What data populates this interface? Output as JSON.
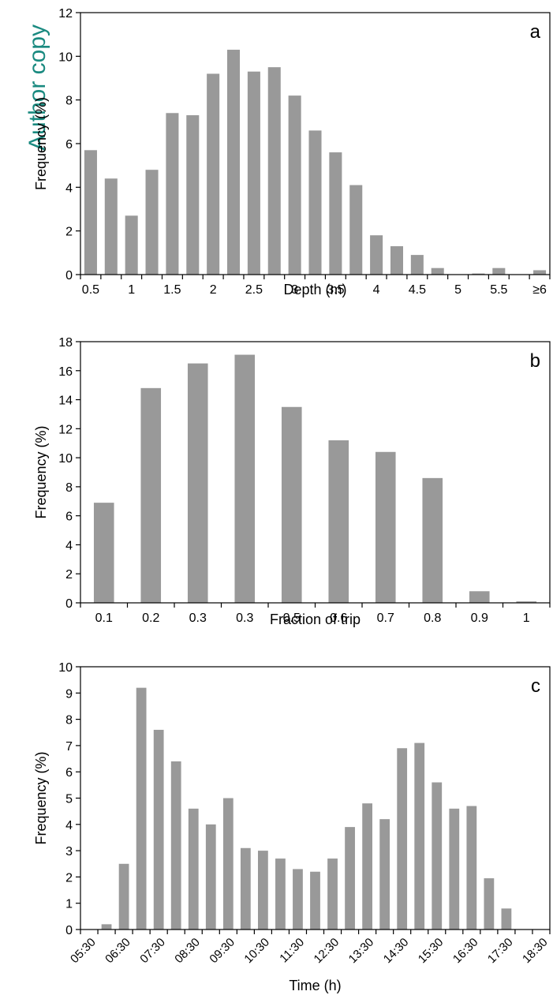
{
  "watermark": "Author copy",
  "colors": {
    "bar": "#999999",
    "axis": "#000000"
  },
  "chart_data": [
    {
      "type": "bar",
      "panel_label": "a",
      "xlabel": "Depth (m)",
      "ylabel": "Frequency (%)",
      "ylim": [
        0,
        12
      ],
      "yticks": [
        0,
        2,
        4,
        6,
        8,
        10,
        12
      ],
      "categories": [
        "0.5",
        "0.75",
        "1",
        "1.25",
        "1.5",
        "1.75",
        "2",
        "2.25",
        "2.5",
        "2.75",
        "3",
        "3.25",
        "3.5",
        "3.75",
        "4",
        "4.25",
        "4.5",
        "4.75",
        "5",
        "5.25",
        "5.5",
        "5.75",
        "≥6"
      ],
      "values": [
        5.7,
        4.4,
        2.7,
        4.8,
        7.4,
        7.3,
        9.2,
        10.3,
        9.3,
        9.5,
        8.2,
        6.6,
        5.6,
        4.1,
        1.8,
        1.3,
        0.9,
        0.3,
        0.0,
        0.05,
        0.3,
        0.0,
        0.2
      ],
      "tick_labels": [
        "0.5",
        "",
        "1",
        "",
        "1.5",
        "",
        "2",
        "",
        "2.5",
        "",
        "3",
        "",
        "3.5",
        "",
        "4",
        "",
        "4.5",
        "",
        "5",
        "",
        "5.5",
        "",
        "≥6"
      ],
      "grid": false
    },
    {
      "type": "bar",
      "panel_label": "b",
      "xlabel": "Fraction of trip",
      "ylabel": "Frequency (%)",
      "ylim": [
        0,
        18
      ],
      "yticks": [
        0,
        2,
        4,
        6,
        8,
        10,
        12,
        14,
        16,
        18
      ],
      "categories": [
        "0.1",
        "0.2",
        "0.3",
        "0.3",
        "0.5",
        "0.6",
        "0.7",
        "0.8",
        "0.9",
        "1"
      ],
      "values": [
        6.9,
        14.8,
        16.5,
        17.1,
        13.5,
        11.2,
        10.4,
        8.6,
        0.8,
        0.1
      ],
      "tick_labels": [
        "0.1",
        "0.2",
        "0.3",
        "0.3",
        "0.5",
        "0.6",
        "0.7",
        "0.8",
        "0.9",
        "1"
      ],
      "grid": false
    },
    {
      "type": "bar",
      "panel_label": "c",
      "xlabel": "Time (h)",
      "ylabel": "Frequency (%)",
      "ylim": [
        0,
        10
      ],
      "yticks": [
        0,
        1,
        2,
        3,
        4,
        5,
        6,
        7,
        8,
        9,
        10
      ],
      "categories": [
        "05:30",
        "06:00",
        "06:30",
        "07:00",
        "07:30",
        "08:00",
        "08:30",
        "09:00",
        "09:30",
        "10:00",
        "10:30",
        "11:00",
        "11:30",
        "12:00",
        "12:30",
        "13:00",
        "13:30",
        "14:00",
        "14:30",
        "15:00",
        "15:30",
        "16:00",
        "16:30",
        "17:00",
        "17:30",
        "18:00",
        "18:30"
      ],
      "values": [
        0,
        0.2,
        2.5,
        9.2,
        7.6,
        6.4,
        4.6,
        4.0,
        5.0,
        3.1,
        3.0,
        2.7,
        2.3,
        2.2,
        2.7,
        3.9,
        4.8,
        4.2,
        6.9,
        7.1,
        5.6,
        4.6,
        4.7,
        1.95,
        0.8,
        0,
        0
      ],
      "tick_labels": [
        "05:30",
        "",
        "06:30",
        "",
        "07:30",
        "",
        "08:30",
        "",
        "09:30",
        "",
        "10:30",
        "",
        "11:30",
        "",
        "12:30",
        "",
        "13:30",
        "",
        "14:30",
        "",
        "15:30",
        "",
        "16:30",
        "",
        "17:30",
        "",
        "18:30"
      ],
      "grid": false
    }
  ]
}
